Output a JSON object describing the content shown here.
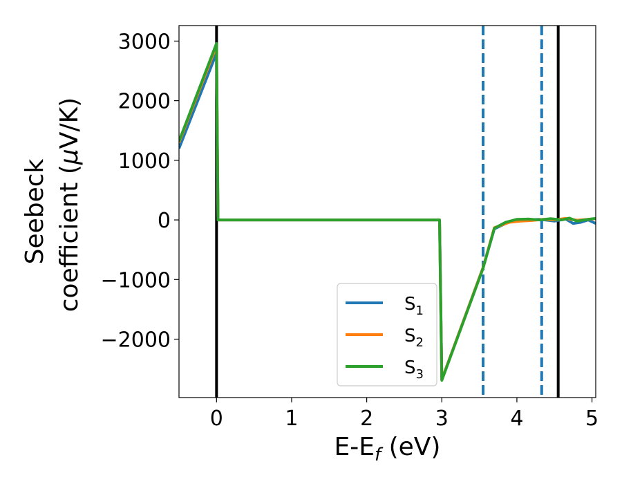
{
  "chart_data": {
    "type": "line",
    "xlabel": {
      "main": "E-E",
      "sub": "f",
      "unit": " (eV)"
    },
    "ylabel": {
      "line1": "Seebeck",
      "line2_prefix": "coefficient  (",
      "mu": "μ",
      "line2_suffix": "V/K)"
    },
    "xlim": [
      -0.5,
      5.05
    ],
    "ylim": [
      -2980,
      3260
    ],
    "xticks": [
      0,
      1,
      2,
      3,
      4,
      5
    ],
    "xtick_labels": [
      "0",
      "1",
      "2",
      "3",
      "4",
      "5"
    ],
    "yticks": [
      -2000,
      -1000,
      0,
      1000,
      2000,
      3000
    ],
    "ytick_labels": [
      "−2000",
      "−1000",
      "0",
      "1000",
      "2000",
      "3000"
    ],
    "vlines": [
      {
        "x": 0,
        "style": "solid",
        "color": "#000000"
      },
      {
        "x": 3.55,
        "style": "dashed",
        "color": "#1f77b4"
      },
      {
        "x": 4.33,
        "style": "dashed",
        "color": "#1f77b4"
      },
      {
        "x": 4.55,
        "style": "solid",
        "color": "#000000"
      }
    ],
    "legend_position": "lower-center",
    "series": [
      {
        "name": "S",
        "sub": "1",
        "color": "#1f77b4",
        "points": [
          [
            -0.5,
            1200
          ],
          [
            0,
            2800
          ],
          [
            0.02,
            0
          ],
          [
            2.97,
            0
          ],
          [
            3.0,
            -2680
          ],
          [
            3.55,
            -800
          ],
          [
            3.7,
            -150
          ],
          [
            3.9,
            -30
          ],
          [
            4.1,
            0
          ],
          [
            4.3,
            10
          ],
          [
            4.5,
            -20
          ],
          [
            4.65,
            15
          ],
          [
            4.75,
            -60
          ],
          [
            4.85,
            -40
          ],
          [
            4.95,
            0
          ],
          [
            5.05,
            -60
          ]
        ]
      },
      {
        "name": "S",
        "sub": "2",
        "color": "#ff7f0e",
        "points": [
          [
            -0.5,
            1300
          ],
          [
            0,
            2920
          ],
          [
            0.02,
            0
          ],
          [
            2.97,
            0
          ],
          [
            3.0,
            -2680
          ],
          [
            3.55,
            -800
          ],
          [
            3.7,
            -130
          ],
          [
            3.9,
            -40
          ],
          [
            4.05,
            -20
          ],
          [
            4.2,
            -10
          ],
          [
            4.35,
            10
          ],
          [
            4.5,
            0
          ],
          [
            4.65,
            25
          ],
          [
            4.8,
            -5
          ],
          [
            4.95,
            10
          ],
          [
            5.05,
            20
          ]
        ]
      },
      {
        "name": "S",
        "sub": "3",
        "color": "#2ca02c",
        "points": [
          [
            -0.5,
            1320
          ],
          [
            0,
            2960
          ],
          [
            0.02,
            0
          ],
          [
            2.97,
            0
          ],
          [
            3.0,
            -2690
          ],
          [
            3.55,
            -810
          ],
          [
            3.7,
            -140
          ],
          [
            3.85,
            -40
          ],
          [
            4.0,
            10
          ],
          [
            4.15,
            15
          ],
          [
            4.3,
            0
          ],
          [
            4.45,
            20
          ],
          [
            4.6,
            0
          ],
          [
            4.7,
            30
          ],
          [
            4.8,
            -20
          ],
          [
            4.95,
            10
          ],
          [
            5.05,
            25
          ]
        ]
      }
    ]
  }
}
